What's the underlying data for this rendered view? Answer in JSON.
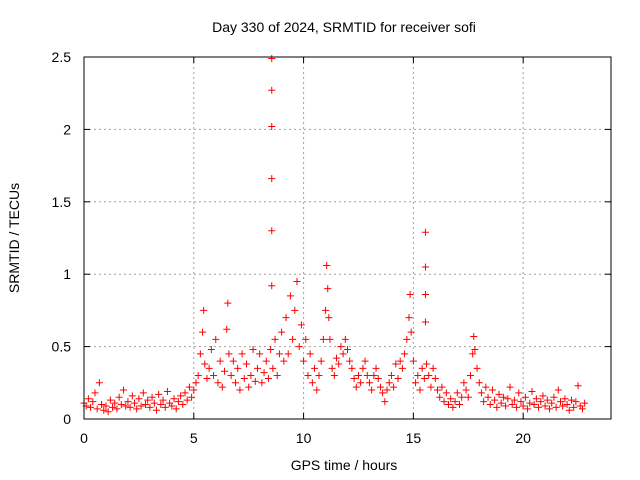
{
  "chart_data": {
    "type": "scatter",
    "title": "Day 330 of 2024, SRMTID for receiver sofi",
    "xlabel": "GPS time / hours",
    "ylabel": "SRMTID / TECUs",
    "xlim": [
      0,
      24
    ],
    "ylim": [
      0,
      2.5
    ],
    "xticks": [
      0,
      5,
      10,
      15,
      20
    ],
    "yticks": [
      0,
      0.5,
      1,
      1.5,
      2,
      2.5
    ],
    "xtick_labels": [
      "0",
      "5",
      "10",
      "15",
      "20"
    ],
    "ytick_labels": [
      "0",
      "0.5",
      "1",
      "1.5",
      "2",
      "2.5"
    ],
    "grid": true,
    "marker": "+",
    "series": [
      {
        "name": "SRMTID",
        "color": "#ff0000",
        "points": [
          [
            0.0,
            0.11
          ],
          [
            0.1,
            0.09
          ],
          [
            0.2,
            0.14
          ],
          [
            0.3,
            0.08
          ],
          [
            0.4,
            0.12
          ],
          [
            0.5,
            0.18
          ],
          [
            0.6,
            0.07
          ],
          [
            0.7,
            0.25
          ],
          [
            0.8,
            0.1
          ],
          [
            0.9,
            0.06
          ],
          [
            1.0,
            0.09
          ],
          [
            1.1,
            0.05
          ],
          [
            1.2,
            0.13
          ],
          [
            1.3,
            0.08
          ],
          [
            1.4,
            0.11
          ],
          [
            1.5,
            0.07
          ],
          [
            1.6,
            0.15
          ],
          [
            1.7,
            0.1
          ],
          [
            1.8,
            0.2
          ],
          [
            1.9,
            0.09
          ],
          [
            2.0,
            0.12
          ],
          [
            2.1,
            0.08
          ],
          [
            2.2,
            0.16
          ],
          [
            2.3,
            0.11
          ],
          [
            2.4,
            0.07
          ],
          [
            2.5,
            0.14
          ],
          [
            2.6,
            0.09
          ],
          [
            2.7,
            0.18
          ],
          [
            2.8,
            0.1
          ],
          [
            2.9,
            0.13
          ],
          [
            3.0,
            0.08
          ],
          [
            3.1,
            0.15
          ],
          [
            3.2,
            0.11
          ],
          [
            3.3,
            0.06
          ],
          [
            3.4,
            0.17
          ],
          [
            3.5,
            0.1
          ],
          [
            3.6,
            0.13
          ],
          [
            3.7,
            0.08
          ],
          [
            3.8,
            0.19
          ],
          [
            3.9,
            0.11
          ],
          [
            4.0,
            0.09
          ],
          [
            4.1,
            0.14
          ],
          [
            4.2,
            0.07
          ],
          [
            4.3,
            0.12
          ],
          [
            4.4,
            0.16
          ],
          [
            4.5,
            0.1
          ],
          [
            4.6,
            0.18
          ],
          [
            4.7,
            0.13
          ],
          [
            4.8,
            0.22
          ],
          [
            4.9,
            0.15
          ],
          [
            5.0,
            0.2
          ],
          [
            5.1,
            0.25
          ],
          [
            5.2,
            0.3
          ],
          [
            5.3,
            0.45
          ],
          [
            5.4,
            0.6
          ],
          [
            5.45,
            0.75
          ],
          [
            5.5,
            0.38
          ],
          [
            5.6,
            0.28
          ],
          [
            5.7,
            0.35
          ],
          [
            5.8,
            0.48
          ],
          [
            5.9,
            0.3
          ],
          [
            6.0,
            0.55
          ],
          [
            6.1,
            0.25
          ],
          [
            6.2,
            0.4
          ],
          [
            6.3,
            0.22
          ],
          [
            6.4,
            0.33
          ],
          [
            6.5,
            0.62
          ],
          [
            6.55,
            0.8
          ],
          [
            6.6,
            0.45
          ],
          [
            6.7,
            0.3
          ],
          [
            6.8,
            0.4
          ],
          [
            6.9,
            0.25
          ],
          [
            7.0,
            0.35
          ],
          [
            7.1,
            0.2
          ],
          [
            7.2,
            0.45
          ],
          [
            7.3,
            0.28
          ],
          [
            7.4,
            0.38
          ],
          [
            7.5,
            0.22
          ],
          [
            7.6,
            0.3
          ],
          [
            7.7,
            0.48
          ],
          [
            7.8,
            0.26
          ],
          [
            7.9,
            0.35
          ],
          [
            8.0,
            0.45
          ],
          [
            8.1,
            0.25
          ],
          [
            8.2,
            0.32
          ],
          [
            8.3,
            0.4
          ],
          [
            8.4,
            0.28
          ],
          [
            8.5,
            0.48
          ],
          [
            8.55,
            2.49
          ],
          [
            8.55,
            2.27
          ],
          [
            8.55,
            2.02
          ],
          [
            8.55,
            1.66
          ],
          [
            8.55,
            1.3
          ],
          [
            8.55,
            0.92
          ],
          [
            8.6,
            0.35
          ],
          [
            8.7,
            0.55
          ],
          [
            8.8,
            0.3
          ],
          [
            8.9,
            0.45
          ],
          [
            9.0,
            0.6
          ],
          [
            9.1,
            0.4
          ],
          [
            9.2,
            0.7
          ],
          [
            9.3,
            0.45
          ],
          [
            9.4,
            0.85
          ],
          [
            9.5,
            0.55
          ],
          [
            9.6,
            0.75
          ],
          [
            9.7,
            0.95
          ],
          [
            9.8,
            0.5
          ],
          [
            9.9,
            0.65
          ],
          [
            10.0,
            0.4
          ],
          [
            10.1,
            0.55
          ],
          [
            10.2,
            0.3
          ],
          [
            10.3,
            0.45
          ],
          [
            10.4,
            0.25
          ],
          [
            10.5,
            0.35
          ],
          [
            10.6,
            0.2
          ],
          [
            10.7,
            0.3
          ],
          [
            10.8,
            0.4
          ],
          [
            10.9,
            0.55
          ],
          [
            11.0,
            0.75
          ],
          [
            11.05,
            1.06
          ],
          [
            11.1,
            0.9
          ],
          [
            11.15,
            0.7
          ],
          [
            11.2,
            0.55
          ],
          [
            11.3,
            0.35
          ],
          [
            11.4,
            0.3
          ],
          [
            11.5,
            0.42
          ],
          [
            11.6,
            0.38
          ],
          [
            11.7,
            0.5
          ],
          [
            11.8,
            0.45
          ],
          [
            11.9,
            0.55
          ],
          [
            12.0,
            0.48
          ],
          [
            12.1,
            0.4
          ],
          [
            12.2,
            0.35
          ],
          [
            12.3,
            0.28
          ],
          [
            12.4,
            0.22
          ],
          [
            12.5,
            0.3
          ],
          [
            12.6,
            0.25
          ],
          [
            12.7,
            0.35
          ],
          [
            12.8,
            0.4
          ],
          [
            12.9,
            0.3
          ],
          [
            13.0,
            0.25
          ],
          [
            13.1,
            0.2
          ],
          [
            13.2,
            0.3
          ],
          [
            13.3,
            0.35
          ],
          [
            13.4,
            0.28
          ],
          [
            13.5,
            0.22
          ],
          [
            13.6,
            0.18
          ],
          [
            13.7,
            0.12
          ],
          [
            13.8,
            0.2
          ],
          [
            13.9,
            0.25
          ],
          [
            14.0,
            0.3
          ],
          [
            14.1,
            0.22
          ],
          [
            14.2,
            0.38
          ],
          [
            14.3,
            0.28
          ],
          [
            14.4,
            0.4
          ],
          [
            14.5,
            0.35
          ],
          [
            14.6,
            0.45
          ],
          [
            14.7,
            0.55
          ],
          [
            14.8,
            0.7
          ],
          [
            14.85,
            0.86
          ],
          [
            14.9,
            0.6
          ],
          [
            15.0,
            0.4
          ],
          [
            15.1,
            0.25
          ],
          [
            15.2,
            0.3
          ],
          [
            15.3,
            0.2
          ],
          [
            15.4,
            0.35
          ],
          [
            15.5,
            0.28
          ],
          [
            15.55,
            1.29
          ],
          [
            15.55,
            1.05
          ],
          [
            15.55,
            0.86
          ],
          [
            15.55,
            0.67
          ],
          [
            15.6,
            0.38
          ],
          [
            15.7,
            0.3
          ],
          [
            15.8,
            0.22
          ],
          [
            15.9,
            0.35
          ],
          [
            16.0,
            0.28
          ],
          [
            16.1,
            0.2
          ],
          [
            16.2,
            0.15
          ],
          [
            16.3,
            0.22
          ],
          [
            16.4,
            0.12
          ],
          [
            16.5,
            0.18
          ],
          [
            16.6,
            0.1
          ],
          [
            16.7,
            0.14
          ],
          [
            16.8,
            0.08
          ],
          [
            16.9,
            0.12
          ],
          [
            17.0,
            0.18
          ],
          [
            17.1,
            0.1
          ],
          [
            17.2,
            0.15
          ],
          [
            17.3,
            0.25
          ],
          [
            17.4,
            0.2
          ],
          [
            17.5,
            0.15
          ],
          [
            17.6,
            0.3
          ],
          [
            17.7,
            0.45
          ],
          [
            17.75,
            0.57
          ],
          [
            17.8,
            0.48
          ],
          [
            17.9,
            0.35
          ],
          [
            18.0,
            0.25
          ],
          [
            18.1,
            0.18
          ],
          [
            18.2,
            0.12
          ],
          [
            18.3,
            0.22
          ],
          [
            18.4,
            0.15
          ],
          [
            18.5,
            0.1
          ],
          [
            18.6,
            0.2
          ],
          [
            18.7,
            0.13
          ],
          [
            18.8,
            0.08
          ],
          [
            18.9,
            0.17
          ],
          [
            19.0,
            0.11
          ],
          [
            19.1,
            0.15
          ],
          [
            19.2,
            0.09
          ],
          [
            19.3,
            0.14
          ],
          [
            19.4,
            0.22
          ],
          [
            19.5,
            0.1
          ],
          [
            19.6,
            0.13
          ],
          [
            19.7,
            0.08
          ],
          [
            19.8,
            0.18
          ],
          [
            19.9,
            0.12
          ],
          [
            20.0,
            0.09
          ],
          [
            20.1,
            0.15
          ],
          [
            20.2,
            0.07
          ],
          [
            20.3,
            0.11
          ],
          [
            20.4,
            0.19
          ],
          [
            20.5,
            0.1
          ],
          [
            20.6,
            0.14
          ],
          [
            20.7,
            0.08
          ],
          [
            20.8,
            0.12
          ],
          [
            20.9,
            0.16
          ],
          [
            21.0,
            0.09
          ],
          [
            21.1,
            0.13
          ],
          [
            21.2,
            0.07
          ],
          [
            21.3,
            0.11
          ],
          [
            21.4,
            0.15
          ],
          [
            21.5,
            0.08
          ],
          [
            21.6,
            0.2
          ],
          [
            21.7,
            0.12
          ],
          [
            21.8,
            0.09
          ],
          [
            21.9,
            0.14
          ],
          [
            22.0,
            0.1
          ],
          [
            22.1,
            0.06
          ],
          [
            22.2,
            0.13
          ],
          [
            22.3,
            0.08
          ],
          [
            22.4,
            0.12
          ],
          [
            22.5,
            0.23
          ],
          [
            22.6,
            0.09
          ],
          [
            22.7,
            0.07
          ],
          [
            22.8,
            0.11
          ]
        ]
      }
    ]
  }
}
